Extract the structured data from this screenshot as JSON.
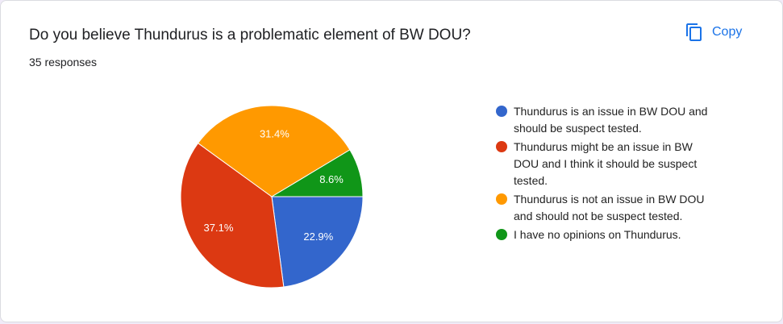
{
  "chart_data": {
    "type": "pie",
    "title": "Do you believe Thundurus is a problematic element of BW DOU?",
    "subtitle": "35 responses",
    "categories": [
      "Thundurus is an issue in BW DOU and should be suspect tested.",
      "Thundurus might be an issue in BW DOU and I think it should be suspect tested.",
      "Thundurus is not an issue in BW DOU and should not be suspect tested.",
      "I have no opinions on Thundurus."
    ],
    "values": [
      22.9,
      37.1,
      31.4,
      8.6
    ],
    "value_labels": [
      "22.9%",
      "37.1%",
      "31.4%",
      "8.6%"
    ],
    "colors": [
      "#3366cc",
      "#dc3912",
      "#ff9900",
      "#109618"
    ],
    "legend": "right"
  },
  "copy_button": {
    "label": "Copy"
  }
}
